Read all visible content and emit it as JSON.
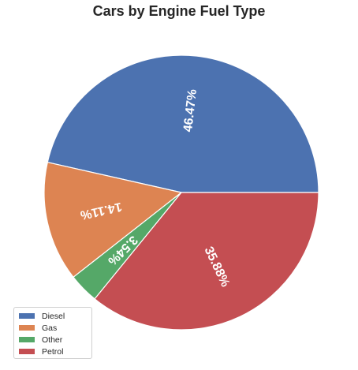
{
  "chart_data": {
    "type": "pie",
    "title": "Cars by Engine Fuel Type",
    "legend_position": "bottom-left",
    "slices": [
      {
        "label": "Diesel",
        "value": 46.47,
        "pct_label": "46.47%",
        "color": "#4c72b0"
      },
      {
        "label": "Gas",
        "value": 14.11,
        "pct_label": "14.11%",
        "color": "#dd8452"
      },
      {
        "label": "Other",
        "value": 3.54,
        "pct_label": "3.54%",
        "color": "#55a868"
      },
      {
        "label": "Petrol",
        "value": 35.88,
        "pct_label": "35.88%",
        "color": "#c44e52"
      }
    ]
  }
}
